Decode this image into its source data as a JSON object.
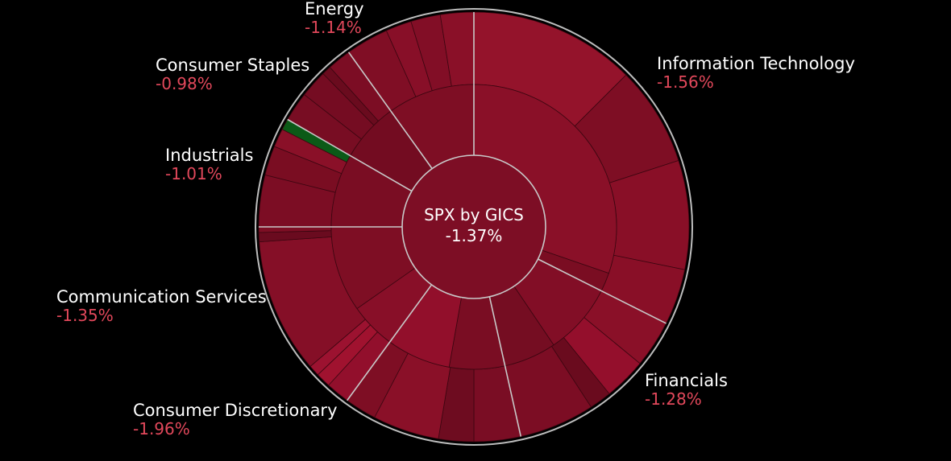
{
  "chart_data": {
    "type": "sunburst",
    "center": {
      "title": "SPX by GICS",
      "change": "-1.37%"
    },
    "sectors": [
      {
        "name": "Information Technology",
        "change": "-1.56%",
        "value": -1.56,
        "start_deg": 0,
        "end_deg": 116.7,
        "color": "#8c1029",
        "industries": [
          {
            "end_deg": 109.0,
            "color": "#8a1028"
          },
          {
            "end_deg": 116.7,
            "color": "#7a0d22"
          }
        ],
        "stocks": [
          {
            "end_deg": 45,
            "color": "#94132b"
          },
          {
            "end_deg": 72,
            "color": "#7e0e24"
          },
          {
            "end_deg": 101.5,
            "color": "#890f27"
          },
          {
            "end_deg": 116.7,
            "color": "#890f27"
          }
        ]
      },
      {
        "name": "Financials",
        "change": "-1.28%",
        "value": -1.28,
        "start_deg": 116.7,
        "end_deg": 167.4,
        "color": "#800e26",
        "industries": [
          {
            "end_deg": 146.0,
            "color": "#820e26"
          },
          {
            "end_deg": 167.4,
            "color": "#750d22"
          }
        ],
        "stocks": [
          {
            "end_deg": 129.5,
            "color": "#8a1028"
          },
          {
            "end_deg": 141,
            "color": "#940f2c"
          },
          {
            "end_deg": 147,
            "color": "#6a0b1e"
          },
          {
            "end_deg": 167.4,
            "color": "#7c0d24"
          }
        ]
      },
      {
        "name": "Consumer Discretionary",
        "change": "-1.96%",
        "value": -1.96,
        "start_deg": 167.4,
        "end_deg": 216.1,
        "color": "#8e1129",
        "industries": [
          {
            "end_deg": 190.0,
            "color": "#7a0d23"
          },
          {
            "end_deg": 216.1,
            "color": "#920f2b"
          }
        ],
        "stocks": [
          {
            "end_deg": 180,
            "color": "#7a0d24"
          },
          {
            "end_deg": 189.5,
            "color": "#6e0c20"
          },
          {
            "end_deg": 207.5,
            "color": "#8a1028"
          },
          {
            "end_deg": 216.1,
            "color": "#7e0e24"
          }
        ]
      },
      {
        "name": "Communication Services",
        "change": "-1.35%",
        "value": -1.35,
        "start_deg": 216.1,
        "end_deg": 270.0,
        "color": "#810e26",
        "industries": [
          {
            "end_deg": 235.0,
            "color": "#880f28"
          },
          {
            "end_deg": 270.0,
            "color": "#7e0e24"
          }
        ],
        "stocks": [
          {
            "end_deg": 222.5,
            "color": "#920f2c"
          },
          {
            "end_deg": 226.5,
            "color": "#a0122f"
          },
          {
            "end_deg": 229.5,
            "color": "#9c1230"
          },
          {
            "end_deg": 266,
            "color": "#850f27"
          },
          {
            "end_deg": 268.5,
            "color": "#6a0b1f"
          },
          {
            "end_deg": 270.0,
            "color": "#7e0e24"
          }
        ]
      },
      {
        "name": "Industrials",
        "change": "-1.01%",
        "value": -1.01,
        "start_deg": 270.0,
        "end_deg": 300.0,
        "color": "#7a0d23",
        "industries": [
          {
            "end_deg": 300.0,
            "color": "#7a0d23"
          }
        ],
        "stocks": [
          {
            "end_deg": 284,
            "color": "#7c0d24"
          },
          {
            "end_deg": 292,
            "color": "#7a0d22"
          },
          {
            "end_deg": 297,
            "color": "#8a1028"
          },
          {
            "end_deg": 300.0,
            "color": "#0b5a17"
          }
        ]
      },
      {
        "name": "Consumer Staples",
        "change": "-0.98%",
        "value": -0.98,
        "start_deg": 300.0,
        "end_deg": 324.4,
        "color": "#730c21",
        "industries": [
          {
            "end_deg": 324.4,
            "color": "#730c21"
          }
        ],
        "stocks": [
          {
            "end_deg": 308,
            "color": "#780d23"
          },
          {
            "end_deg": 315.5,
            "color": "#750c22"
          },
          {
            "end_deg": 318,
            "color": "#6a0b1e"
          },
          {
            "end_deg": 324.4,
            "color": "#7c0d24"
          }
        ]
      },
      {
        "name": "Energy",
        "change": "-1.14%",
        "value": -1.14,
        "start_deg": 324.4,
        "end_deg": 360.0,
        "color": "#7e0e24",
        "industries": [
          {
            "end_deg": 360.0,
            "color": "#7e0e24"
          }
        ],
        "stocks": [
          {
            "end_deg": 336,
            "color": "#800e25"
          },
          {
            "end_deg": 343,
            "color": "#880f28"
          },
          {
            "end_deg": 351,
            "color": "#820e26"
          },
          {
            "end_deg": 360.0,
            "color": "#8a1028"
          }
        ]
      }
    ]
  }
}
